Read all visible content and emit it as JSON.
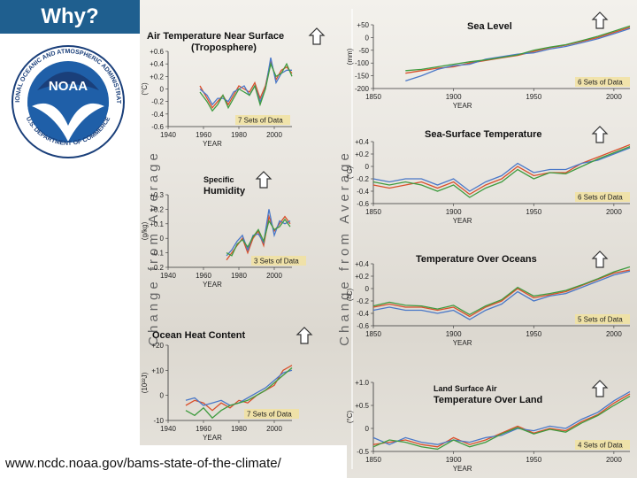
{
  "header": {
    "title": "Why?"
  },
  "footer": {
    "url": "www.ncdc.noaa.gov/bams-state-of-the-climate/"
  },
  "logo": {
    "text_top": "NATIONAL OCEANIC AND ATMOSPHERIC ADMINISTRATION",
    "text_bottom": "U.S. DEPARTMENT OF COMMERCE",
    "center": "NOAA"
  },
  "axis_side_labels": [
    "Change from Average",
    "Change from Average"
  ],
  "colors": {
    "header_bg": "#1f5f8f",
    "series": [
      "#d94f2b",
      "#4a78c8",
      "#3f9b3f",
      "#555555",
      "#e0b040",
      "#111111",
      "#9a6a30"
    ]
  },
  "chart_data": [
    {
      "id": "air-temp",
      "type": "line",
      "title": [
        "Air Temperature Near Surface",
        "(Troposphere)"
      ],
      "ylabel": "(°C)",
      "xlabel": "YEAR",
      "xlim": [
        1940,
        2010
      ],
      "ylim": [
        -0.6,
        0.6
      ],
      "xticks": [
        1940,
        1960,
        1980,
        2000
      ],
      "yticks": [
        "+0.6",
        "+0.4",
        "+0.2",
        "0",
        "-0.2",
        "-0.4",
        "-0.6"
      ],
      "sets": "7 Sets of Data",
      "series": [
        {
          "x": [
            1958,
            1962,
            1965,
            1968,
            1971,
            1974,
            1977,
            1980,
            1983,
            1986,
            1989,
            1992,
            1995,
            1998,
            2001,
            2004,
            2007,
            2010
          ],
          "y": [
            0.05,
            -0.15,
            -0.3,
            -0.2,
            -0.1,
            -0.25,
            -0.1,
            0.05,
            0.0,
            -0.05,
            0.1,
            -0.15,
            0.05,
            0.45,
            0.15,
            0.3,
            0.35,
            0.25
          ]
        },
        {
          "x": [
            1958,
            1962,
            1965,
            1968,
            1971,
            1974,
            1977,
            1980,
            1983,
            1986,
            1989,
            1992,
            1995,
            1998,
            2001,
            2004,
            2007,
            2010
          ],
          "y": [
            0.0,
            -0.1,
            -0.25,
            -0.15,
            -0.15,
            -0.2,
            -0.05,
            0.0,
            0.05,
            -0.1,
            0.05,
            -0.2,
            0.0,
            0.5,
            0.1,
            0.25,
            0.3,
            0.3
          ]
        },
        {
          "x": [
            1958,
            1962,
            1965,
            1968,
            1971,
            1974,
            1977,
            1980,
            1983,
            1986,
            1989,
            1992,
            1995,
            1998,
            2001,
            2004,
            2007,
            2010
          ],
          "y": [
            -0.05,
            -0.2,
            -0.35,
            -0.25,
            -0.1,
            -0.3,
            -0.15,
            0.0,
            -0.05,
            -0.1,
            0.05,
            -0.25,
            0.0,
            0.4,
            0.2,
            0.25,
            0.4,
            0.2
          ]
        }
      ]
    },
    {
      "id": "humidity",
      "type": "line",
      "title": [
        "Specific",
        "Humidity"
      ],
      "ylabel": "(g/kg)",
      "xlabel": "YEAR",
      "xlim": [
        1940,
        2010
      ],
      "ylim": [
        -0.2,
        0.3
      ],
      "xticks": [
        1940,
        1960,
        1980,
        2000
      ],
      "yticks": [
        "+0.3",
        "+0.2",
        "+0.1",
        "0",
        "-0.1",
        "-0.2"
      ],
      "sets": "3 Sets of Data",
      "series": [
        {
          "x": [
            1973,
            1976,
            1979,
            1982,
            1985,
            1988,
            1991,
            1994,
            1997,
            2000,
            2003,
            2006,
            2009
          ],
          "y": [
            -0.15,
            -0.1,
            -0.05,
            0.0,
            -0.1,
            0.0,
            0.05,
            -0.05,
            0.15,
            0.05,
            0.1,
            0.15,
            0.1
          ]
        },
        {
          "x": [
            1973,
            1976,
            1979,
            1982,
            1985,
            1988,
            1991,
            1994,
            1997,
            2000,
            2003,
            2006,
            2009
          ],
          "y": [
            -0.12,
            -0.08,
            -0.02,
            0.02,
            -0.08,
            0.02,
            0.03,
            -0.03,
            0.2,
            0.02,
            0.12,
            0.1,
            0.12
          ]
        },
        {
          "x": [
            1973,
            1976,
            1979,
            1982,
            1985,
            1988,
            1991,
            1994,
            1997,
            2000,
            2003,
            2006,
            2009
          ],
          "y": [
            -0.1,
            -0.12,
            -0.04,
            -0.01,
            -0.06,
            0.01,
            0.06,
            -0.02,
            0.12,
            0.06,
            0.08,
            0.13,
            0.08
          ]
        }
      ]
    },
    {
      "id": "ocean-heat",
      "type": "line",
      "title": [
        "Ocean Heat Content"
      ],
      "ylabel": "(10²²J)",
      "xlabel": "YEAR",
      "xlim": [
        1940,
        2010
      ],
      "ylim": [
        -10,
        20
      ],
      "xticks": [
        1940,
        1960,
        1980,
        2000
      ],
      "yticks": [
        "+20",
        "+10",
        "0",
        "-10"
      ],
      "sets": "7 Sets of Data",
      "series": [
        {
          "x": [
            1950,
            1955,
            1960,
            1965,
            1970,
            1975,
            1980,
            1985,
            1990,
            1995,
            2000,
            2005,
            2010
          ],
          "y": [
            -4,
            -2,
            -3,
            -6,
            -3,
            -5,
            -2,
            -3,
            0,
            2,
            4,
            10,
            12
          ]
        },
        {
          "x": [
            1950,
            1955,
            1960,
            1965,
            1970,
            1975,
            1980,
            1985,
            1990,
            1995,
            2000,
            2005,
            2010
          ],
          "y": [
            -2,
            -1,
            -4,
            -3,
            -2,
            -4,
            -3,
            -1,
            1,
            3,
            6,
            9,
            10
          ]
        },
        {
          "x": [
            1950,
            1955,
            1960,
            1965,
            1970,
            1975,
            1980,
            1985,
            1990,
            1995,
            2000,
            2005,
            2010
          ],
          "y": [
            -6,
            -8,
            -5,
            -9,
            -6,
            -4,
            -3,
            -2,
            0,
            2,
            5,
            8,
            11
          ]
        }
      ]
    },
    {
      "id": "sea-level",
      "type": "line",
      "title": [
        "Sea Level"
      ],
      "ylabel": "(mm)",
      "xlabel": "YEAR",
      "xlim": [
        1850,
        2010
      ],
      "ylim": [
        -200,
        50
      ],
      "xticks": [
        1850,
        1900,
        1950,
        2000
      ],
      "yticks": [
        "+50",
        "0",
        "-50",
        "-100",
        "-150",
        "-200"
      ],
      "sets": "6 Sets of Data",
      "series": [
        {
          "x": [
            1870,
            1880,
            1890,
            1900,
            1910,
            1920,
            1930,
            1940,
            1950,
            1960,
            1970,
            1980,
            1990,
            2000,
            2010
          ],
          "y": [
            -140,
            -130,
            -120,
            -115,
            -100,
            -90,
            -80,
            -70,
            -55,
            -40,
            -30,
            -15,
            0,
            20,
            40
          ]
        },
        {
          "x": [
            1870,
            1880,
            1890,
            1900,
            1910,
            1920,
            1930,
            1940,
            1950,
            1960,
            1970,
            1980,
            1990,
            2000,
            2010
          ],
          "y": [
            -170,
            -150,
            -125,
            -110,
            -105,
            -85,
            -75,
            -65,
            -60,
            -45,
            -35,
            -20,
            -5,
            15,
            35
          ]
        },
        {
          "x": [
            1870,
            1880,
            1890,
            1900,
            1910,
            1920,
            1930,
            1940,
            1950,
            1960,
            1970,
            1980,
            1990,
            2000,
            2010
          ],
          "y": [
            -130,
            -125,
            -115,
            -105,
            -95,
            -88,
            -78,
            -68,
            -50,
            -38,
            -28,
            -12,
            5,
            25,
            45
          ]
        }
      ]
    },
    {
      "id": "sst",
      "type": "line",
      "title": [
        "Sea-Surface Temperature"
      ],
      "ylabel": "(°C)",
      "xlabel": "YEAR",
      "xlim": [
        1850,
        2010
      ],
      "ylim": [
        -0.6,
        0.4
      ],
      "xticks": [
        1850,
        1900,
        1950,
        2000
      ],
      "yticks": [
        "+0.4",
        "+0.2",
        "0",
        "-0.2",
        "-0.4",
        "-0.6"
      ],
      "sets": "6 Sets of Data",
      "series": [
        {
          "x": [
            1850,
            1860,
            1870,
            1880,
            1890,
            1900,
            1910,
            1920,
            1930,
            1940,
            1950,
            1960,
            1970,
            1980,
            1990,
            2000,
            2010
          ],
          "y": [
            -0.3,
            -0.35,
            -0.3,
            -0.25,
            -0.35,
            -0.25,
            -0.45,
            -0.3,
            -0.2,
            0.0,
            -0.15,
            -0.1,
            -0.1,
            0.05,
            0.15,
            0.25,
            0.35
          ]
        },
        {
          "x": [
            1850,
            1860,
            1870,
            1880,
            1890,
            1900,
            1910,
            1920,
            1930,
            1940,
            1950,
            1960,
            1970,
            1980,
            1990,
            2000,
            2010
          ],
          "y": [
            -0.2,
            -0.25,
            -0.2,
            -0.2,
            -0.3,
            -0.2,
            -0.4,
            -0.25,
            -0.15,
            0.05,
            -0.1,
            -0.05,
            -0.05,
            0.05,
            0.1,
            0.2,
            0.3
          ]
        },
        {
          "x": [
            1850,
            1860,
            1870,
            1880,
            1890,
            1900,
            1910,
            1920,
            1930,
            1940,
            1950,
            1960,
            1970,
            1980,
            1990,
            2000,
            2010
          ],
          "y": [
            -0.25,
            -0.3,
            -0.25,
            -0.3,
            -0.4,
            -0.3,
            -0.5,
            -0.35,
            -0.25,
            -0.05,
            -0.2,
            -0.1,
            -0.12,
            0.0,
            0.12,
            0.22,
            0.32
          ]
        }
      ]
    },
    {
      "id": "ocean-temp",
      "type": "line",
      "title": [
        "Temperature Over Oceans"
      ],
      "ylabel": "(°C)",
      "xlabel": "YEAR",
      "xlim": [
        1850,
        2010
      ],
      "ylim": [
        -0.6,
        0.4
      ],
      "xticks": [
        1850,
        1900,
        1950,
        2000
      ],
      "yticks": [
        "+0.4",
        "+0.2",
        "0",
        "-0.2",
        "-0.4",
        "-0.6"
      ],
      "sets": "5 Sets of Data",
      "series": [
        {
          "x": [
            1850,
            1860,
            1870,
            1880,
            1890,
            1900,
            1910,
            1920,
            1930,
            1940,
            1950,
            1960,
            1970,
            1980,
            1990,
            2000,
            2010
          ],
          "y": [
            -0.3,
            -0.25,
            -0.3,
            -0.3,
            -0.35,
            -0.3,
            -0.45,
            -0.3,
            -0.2,
            0.0,
            -0.15,
            -0.1,
            -0.05,
            0.05,
            0.15,
            0.25,
            0.3
          ]
        },
        {
          "x": [
            1850,
            1860,
            1870,
            1880,
            1890,
            1900,
            1910,
            1920,
            1930,
            1940,
            1950,
            1960,
            1970,
            1980,
            1990,
            2000,
            2010
          ],
          "y": [
            -0.35,
            -0.3,
            -0.35,
            -0.35,
            -0.4,
            -0.35,
            -0.5,
            -0.35,
            -0.25,
            -0.05,
            -0.2,
            -0.12,
            -0.08,
            0.02,
            0.12,
            0.22,
            0.28
          ]
        },
        {
          "x": [
            1850,
            1860,
            1870,
            1880,
            1890,
            1900,
            1910,
            1920,
            1930,
            1940,
            1950,
            1960,
            1970,
            1980,
            1990,
            2000,
            2010
          ],
          "y": [
            -0.28,
            -0.22,
            -0.27,
            -0.28,
            -0.33,
            -0.27,
            -0.42,
            -0.28,
            -0.18,
            0.02,
            -0.12,
            -0.08,
            -0.03,
            0.06,
            0.16,
            0.27,
            0.35
          ]
        }
      ]
    },
    {
      "id": "land-temp",
      "type": "line",
      "title": [
        "Land Surface Air",
        "Temperature Over Land"
      ],
      "ylabel": "(°C)",
      "xlabel": "YEAR",
      "xlim": [
        1850,
        2010
      ],
      "ylim": [
        -0.5,
        1.0
      ],
      "xticks": [
        1850,
        1900,
        1950,
        2000
      ],
      "yticks": [
        "+1.0",
        "+0.5",
        "0",
        "-0.5"
      ],
      "sets": "4 Sets of Data",
      "series": [
        {
          "x": [
            1850,
            1860,
            1870,
            1880,
            1890,
            1900,
            1910,
            1920,
            1930,
            1940,
            1950,
            1960,
            1970,
            1980,
            1990,
            2000,
            2010
          ],
          "y": [
            -0.35,
            -0.3,
            -0.25,
            -0.35,
            -0.4,
            -0.2,
            -0.35,
            -0.25,
            -0.1,
            0.05,
            -0.1,
            0.0,
            -0.05,
            0.15,
            0.3,
            0.55,
            0.75
          ]
        },
        {
          "x": [
            1850,
            1860,
            1870,
            1880,
            1890,
            1900,
            1910,
            1920,
            1930,
            1940,
            1950,
            1960,
            1970,
            1980,
            1990,
            2000,
            2010
          ],
          "y": [
            -0.2,
            -0.35,
            -0.2,
            -0.3,
            -0.35,
            -0.25,
            -0.3,
            -0.2,
            -0.15,
            0.0,
            -0.05,
            0.05,
            0.0,
            0.2,
            0.35,
            0.6,
            0.8
          ]
        },
        {
          "x": [
            1850,
            1860,
            1870,
            1880,
            1890,
            1900,
            1910,
            1920,
            1930,
            1940,
            1950,
            1960,
            1970,
            1980,
            1990,
            2000,
            2010
          ],
          "y": [
            -0.4,
            -0.25,
            -0.3,
            -0.4,
            -0.45,
            -0.25,
            -0.4,
            -0.3,
            -0.12,
            0.02,
            -0.12,
            -0.02,
            -0.08,
            0.12,
            0.28,
            0.5,
            0.7
          ]
        }
      ]
    }
  ]
}
